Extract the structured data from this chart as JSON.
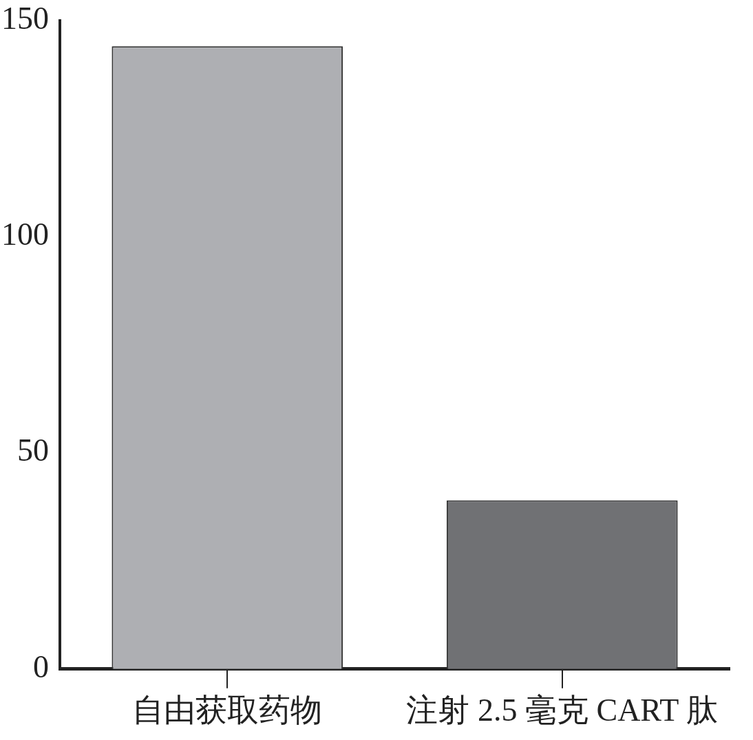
{
  "chart_data": {
    "type": "bar",
    "categories": [
      "自由获取药物",
      "注射 2.5 毫克 CART 肽"
    ],
    "colors": [
      "#aeafb3",
      "#707174"
    ],
    "values": [
      144,
      39
    ],
    "ylim": [
      0,
      150
    ],
    "yticks": [
      0,
      50,
      100,
      150
    ],
    "grid": false,
    "legend": false
  }
}
